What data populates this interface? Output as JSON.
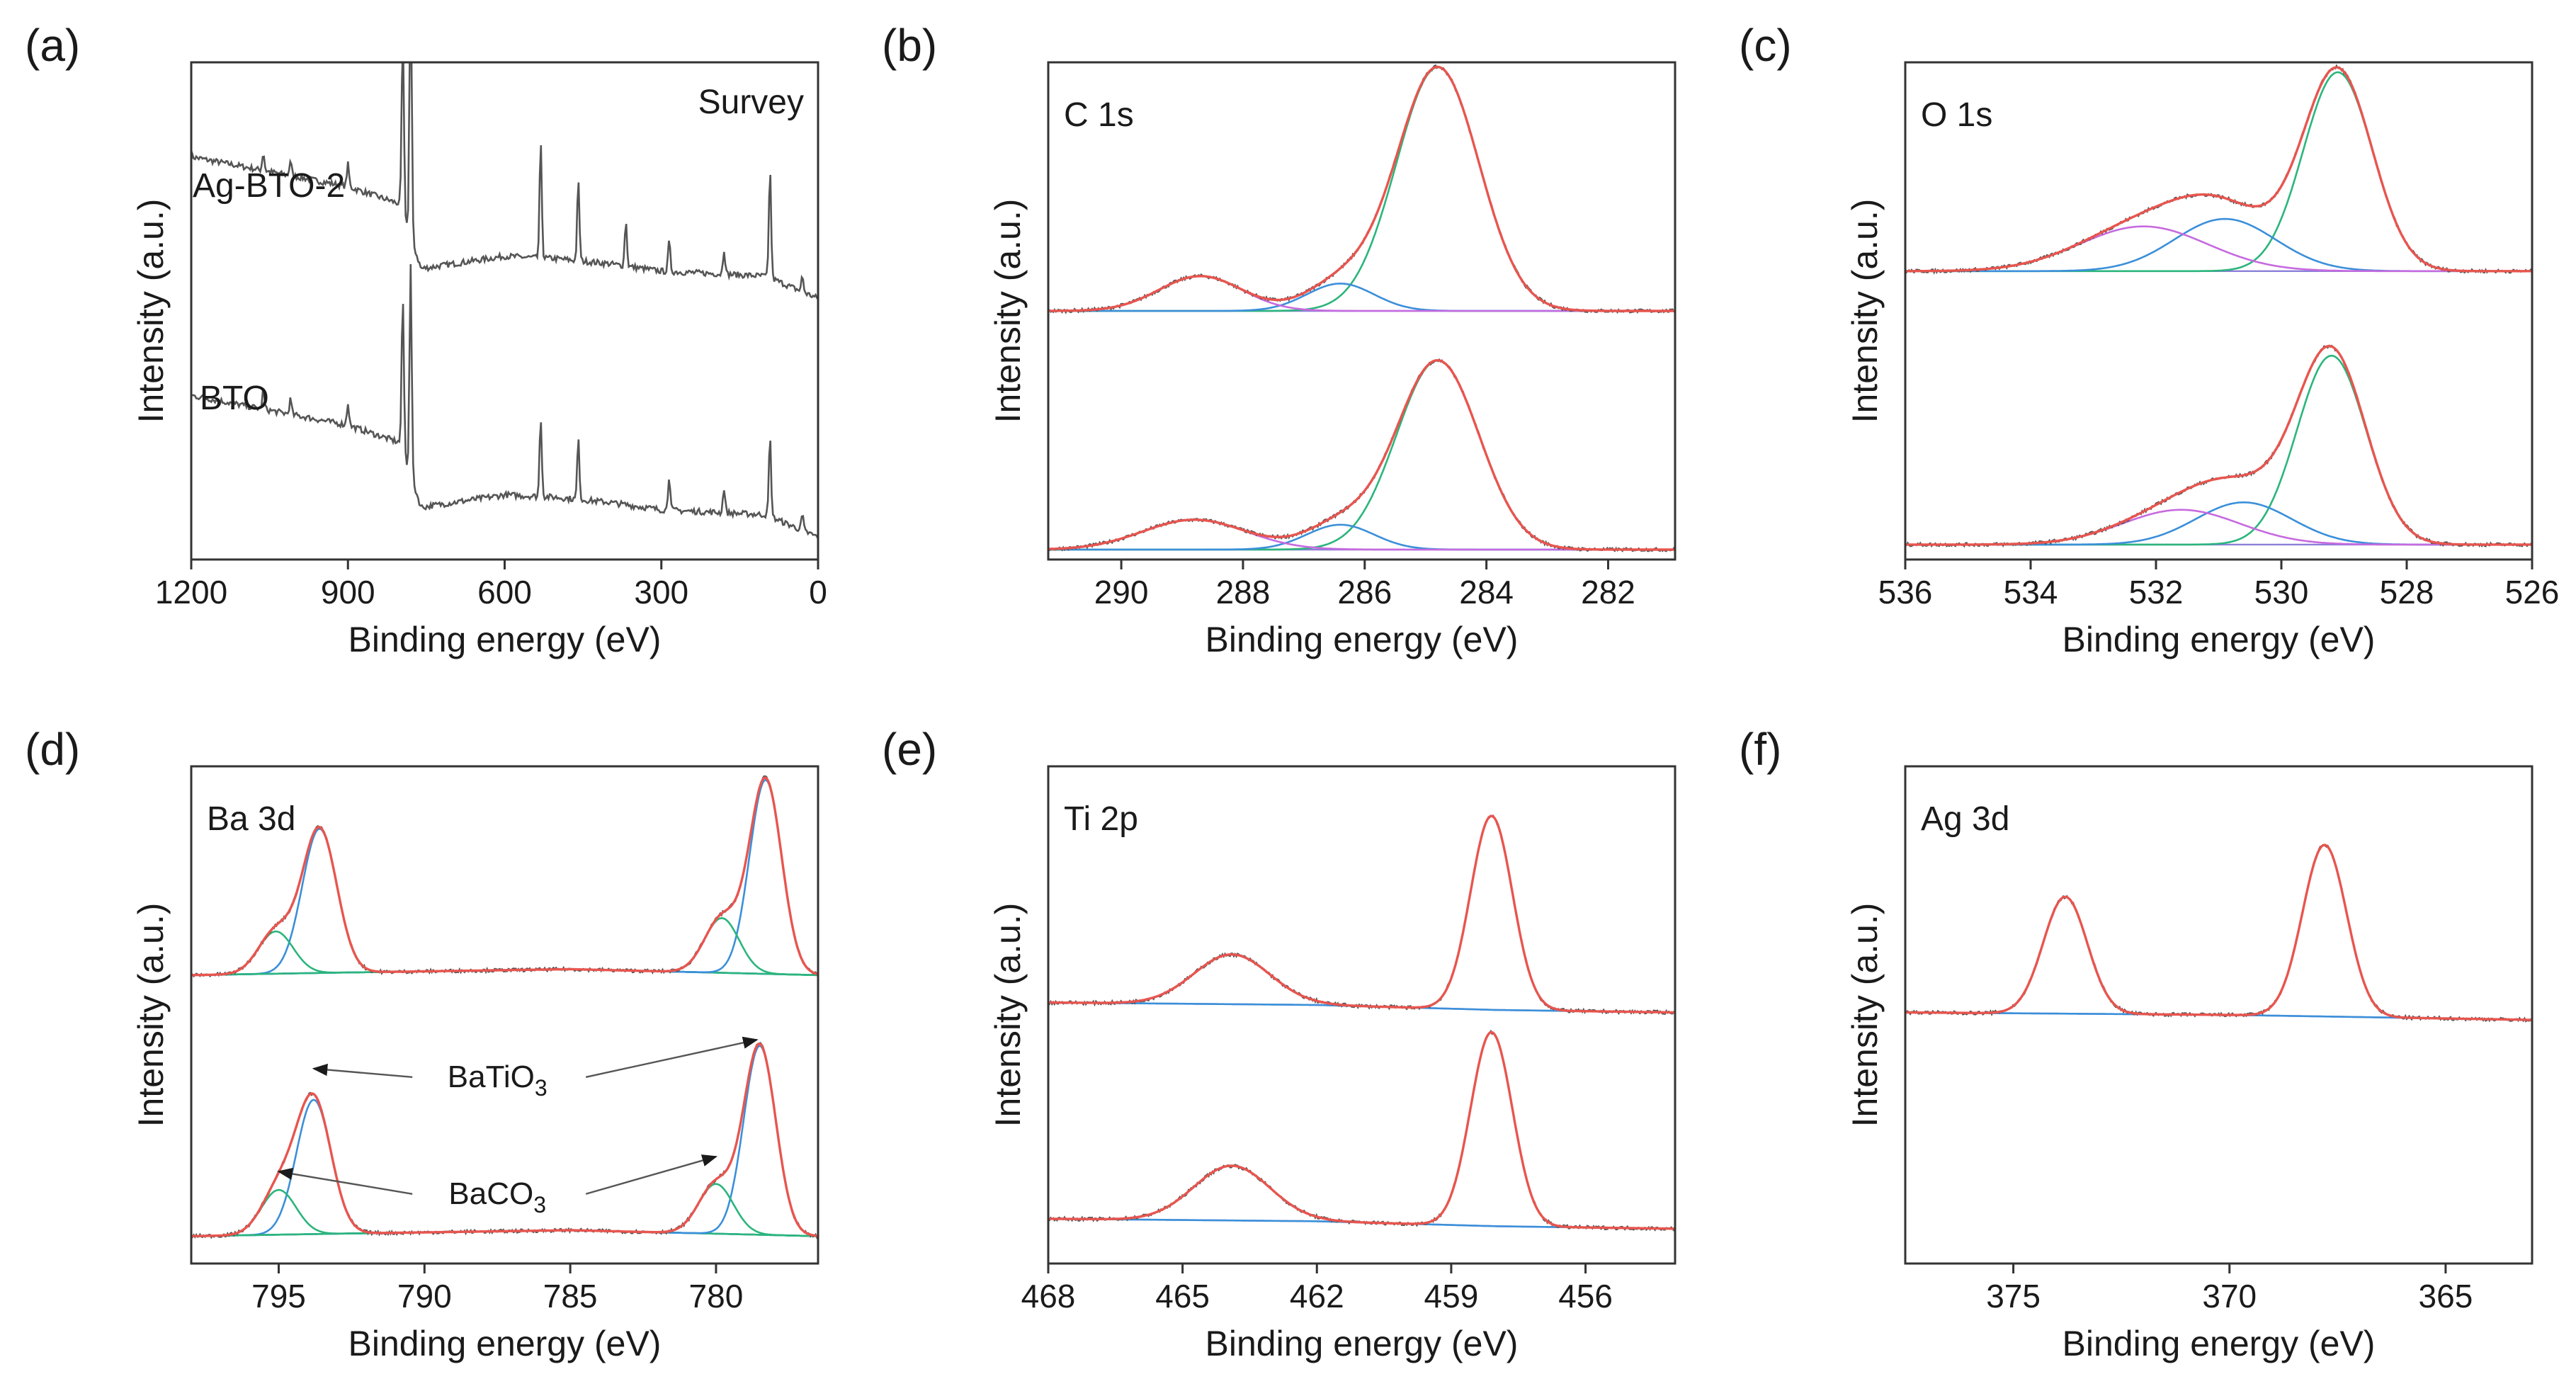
{
  "figure": {
    "colors": {
      "envelope": "#e8554f",
      "raw": "#555555",
      "component_main": "#3b8fd9",
      "component_second": "#2bb57c",
      "component_third": "#c66adf",
      "baseline": "#8a7fd8",
      "survey": "#555555"
    }
  },
  "chart_data": [
    {
      "id": "a",
      "panel_label": "(a)",
      "type": "line",
      "title": "Survey",
      "xlabel": "Binding energy (eV)",
      "ylabel": "Intensity (a.u.)",
      "xlim": [
        1200,
        0
      ],
      "ylim": [
        0,
        10
      ],
      "xticks": [
        1200,
        900,
        600,
        300,
        0
      ],
      "xtick_labels": [
        "1200",
        "900",
        "600",
        "300",
        "0"
      ],
      "series_labels": [
        "Ag-BTO-2",
        "BTO"
      ],
      "series": [
        {
          "name": "Ag-BTO-2",
          "offset": 5.2,
          "background": [
            [
              1200,
              2.9
            ],
            [
              1050,
              2.6
            ],
            [
              900,
              2.3
            ],
            [
              800,
              1.95
            ],
            [
              760,
              0.65
            ],
            [
              600,
              0.9
            ],
            [
              500,
              0.85
            ],
            [
              400,
              0.75
            ],
            [
              300,
              0.6
            ],
            [
              200,
              0.55
            ],
            [
              100,
              0.5
            ],
            [
              0,
              0.05
            ]
          ],
          "peaks": [
            {
              "x": 1062,
              "h": 0.35
            },
            {
              "x": 1010,
              "h": 0.3
            },
            {
              "x": 900,
              "h": 0.45
            },
            {
              "x": 795,
              "h": 3.6
            },
            {
              "x": 780,
              "h": 5.4
            },
            {
              "x": 531,
              "h": 2.3
            },
            {
              "x": 459,
              "h": 1.6
            },
            {
              "x": 368,
              "h": 0.9
            },
            {
              "x": 285,
              "h": 0.6
            },
            {
              "x": 180,
              "h": 0.5
            },
            {
              "x": 92,
              "h": 2.2
            },
            {
              "x": 30,
              "h": 0.3
            }
          ]
        },
        {
          "name": "BTO",
          "offset": 0.4,
          "background": [
            [
              1200,
              2.9
            ],
            [
              1050,
              2.6
            ],
            [
              900,
              2.3
            ],
            [
              800,
              1.95
            ],
            [
              760,
              0.65
            ],
            [
              600,
              0.9
            ],
            [
              500,
              0.85
            ],
            [
              400,
              0.75
            ],
            [
              300,
              0.6
            ],
            [
              200,
              0.55
            ],
            [
              100,
              0.5
            ],
            [
              0,
              0.05
            ]
          ],
          "peaks": [
            {
              "x": 1062,
              "h": 0.35
            },
            {
              "x": 1010,
              "h": 0.3
            },
            {
              "x": 900,
              "h": 0.45
            },
            {
              "x": 795,
              "h": 3.1
            },
            {
              "x": 780,
              "h": 4.2
            },
            {
              "x": 531,
              "h": 1.6
            },
            {
              "x": 459,
              "h": 1.2
            },
            {
              "x": 285,
              "h": 0.7
            },
            {
              "x": 180,
              "h": 0.5
            },
            {
              "x": 92,
              "h": 1.6
            },
            {
              "x": 30,
              "h": 0.3
            }
          ]
        }
      ]
    },
    {
      "id": "b",
      "panel_label": "(b)",
      "type": "line",
      "title": "C 1s",
      "xlabel": "Binding energy (eV)",
      "ylabel": "Intensity (a.u.)",
      "xlim": [
        291.2,
        280.9
      ],
      "ylim": [
        0,
        10
      ],
      "xticks": [
        290,
        288,
        286,
        284,
        282
      ],
      "xtick_labels": [
        "290",
        "288",
        "286",
        "284",
        "282"
      ],
      "stacks": [
        {
          "offset": 5.0,
          "baseline": [
            [
              291.2,
              0.0
            ],
            [
              280.9,
              0.0
            ]
          ],
          "components": [
            {
              "center": 284.8,
              "fwhm": 1.6,
              "height": 4.9,
              "color": "component_second"
            },
            {
              "center": 286.4,
              "fwhm": 1.3,
              "height": 0.55,
              "color": "component_main"
            },
            {
              "center": 288.7,
              "fwhm": 1.6,
              "height": 0.7,
              "color": "component_third"
            }
          ]
        },
        {
          "offset": 0.2,
          "baseline": [
            [
              291.2,
              0.0
            ],
            [
              280.9,
              0.0
            ]
          ],
          "components": [
            {
              "center": 284.8,
              "fwhm": 1.6,
              "height": 3.8,
              "color": "component_second"
            },
            {
              "center": 286.4,
              "fwhm": 1.3,
              "height": 0.5,
              "color": "component_main"
            },
            {
              "center": 288.8,
              "fwhm": 2.0,
              "height": 0.6,
              "color": "component_third"
            }
          ]
        }
      ]
    },
    {
      "id": "c",
      "panel_label": "(c)",
      "type": "line",
      "title": "O 1s",
      "xlabel": "Binding energy (eV)",
      "ylabel": "Intensity (a.u.)",
      "xlim": [
        536,
        526
      ],
      "ylim": [
        0,
        10
      ],
      "xticks": [
        536,
        534,
        532,
        530,
        528,
        526
      ],
      "xtick_labels": [
        "536",
        "534",
        "532",
        "530",
        "528",
        "526"
      ],
      "stacks": [
        {
          "offset": 5.8,
          "baseline": [
            [
              536,
              0.0
            ],
            [
              526,
              0.0
            ]
          ],
          "components": [
            {
              "center": 529.1,
              "fwhm": 1.3,
              "height": 4.0,
              "color": "component_second"
            },
            {
              "center": 530.9,
              "fwhm": 1.9,
              "height": 1.05,
              "color": "component_main"
            },
            {
              "center": 532.2,
              "fwhm": 2.4,
              "height": 0.9,
              "color": "component_third"
            }
          ]
        },
        {
          "offset": 0.3,
          "baseline": [
            [
              536,
              0.0
            ],
            [
              526,
              0.0
            ]
          ],
          "components": [
            {
              "center": 529.2,
              "fwhm": 1.3,
              "height": 3.8,
              "color": "component_second"
            },
            {
              "center": 530.6,
              "fwhm": 1.8,
              "height": 0.85,
              "color": "component_main"
            },
            {
              "center": 531.6,
              "fwhm": 2.2,
              "height": 0.7,
              "color": "component_third"
            }
          ]
        }
      ]
    },
    {
      "id": "d",
      "panel_label": "(d)",
      "type": "line",
      "title": "Ba 3d",
      "xlabel": "Binding energy (eV)",
      "ylabel": "Intensity (a.u.)",
      "xlim": [
        798,
        776.5
      ],
      "ylim": [
        0,
        10
      ],
      "xticks": [
        795,
        790,
        785,
        780
      ],
      "xtick_labels": [
        "795",
        "790",
        "785",
        "780"
      ],
      "annotations": [
        {
          "text": "BaTiO",
          "sub": "3",
          "at": [
            787.5,
            3.55
          ],
          "arrows": [
            [
              793.8,
              3.92
            ],
            [
              778.6,
              4.5
            ]
          ]
        },
        {
          "text": "BaCO",
          "sub": "3",
          "at": [
            787.5,
            1.2
          ],
          "arrows": [
            [
              795.0,
              1.85
            ],
            [
              780.0,
              2.15
            ]
          ]
        }
      ],
      "stacks": [
        {
          "offset": 5.8,
          "baseline": [
            [
              798,
              0.0
            ],
            [
              793,
              0.05
            ],
            [
              785,
              0.12
            ],
            [
              780,
              0.05
            ],
            [
              776.5,
              0.0
            ]
          ],
          "components": [
            {
              "center": 793.6,
              "fwhm": 1.4,
              "height": 2.9,
              "color": "component_main"
            },
            {
              "center": 795.1,
              "fwhm": 1.4,
              "height": 0.85,
              "color": "component_second"
            },
            {
              "center": 778.3,
              "fwhm": 1.3,
              "height": 3.9,
              "color": "component_main"
            },
            {
              "center": 779.8,
              "fwhm": 1.4,
              "height": 1.1,
              "color": "component_second"
            }
          ]
        },
        {
          "offset": 0.55,
          "baseline": [
            [
              798,
              0.0
            ],
            [
              793,
              0.05
            ],
            [
              785,
              0.12
            ],
            [
              780,
              0.05
            ],
            [
              776.5,
              0.0
            ]
          ],
          "components": [
            {
              "center": 793.8,
              "fwhm": 1.4,
              "height": 2.7,
              "color": "component_main"
            },
            {
              "center": 795.0,
              "fwhm": 1.4,
              "height": 0.9,
              "color": "component_second"
            },
            {
              "center": 778.5,
              "fwhm": 1.3,
              "height": 3.8,
              "color": "component_main"
            },
            {
              "center": 780.0,
              "fwhm": 1.4,
              "height": 1.0,
              "color": "component_second"
            }
          ]
        }
      ]
    },
    {
      "id": "e",
      "panel_label": "(e)",
      "type": "line",
      "title": "Ti 2p",
      "xlabel": "Binding energy (eV)",
      "ylabel": "Intensity (a.u.)",
      "xlim": [
        468,
        454
      ],
      "ylim": [
        0,
        10
      ],
      "xticks": [
        468,
        465,
        462,
        459,
        456
      ],
      "xtick_labels": [
        "468",
        "465",
        "462",
        "459",
        "456"
      ],
      "stacks": [
        {
          "offset": 5.2,
          "baseline": [
            [
              468,
              0.05
            ],
            [
              462,
              0.0
            ],
            [
              458,
              -0.1
            ],
            [
              454,
              -0.15
            ]
          ],
          "components": [
            {
              "center": 463.9,
              "fwhm": 2.0,
              "height": 1.0,
              "color": "component_main"
            },
            {
              "center": 458.1,
              "fwhm": 1.1,
              "height": 3.9,
              "color": "component_main"
            }
          ]
        },
        {
          "offset": 0.85,
          "baseline": [
            [
              468,
              0.05
            ],
            [
              462,
              0.0
            ],
            [
              458,
              -0.1
            ],
            [
              454,
              -0.15
            ]
          ],
          "components": [
            {
              "center": 463.9,
              "fwhm": 2.0,
              "height": 1.1,
              "color": "component_main"
            },
            {
              "center": 458.1,
              "fwhm": 1.1,
              "height": 3.9,
              "color": "component_main"
            }
          ]
        }
      ]
    },
    {
      "id": "f",
      "panel_label": "(f)",
      "type": "line",
      "title": "Ag 3d",
      "xlabel": "Binding energy (eV)",
      "ylabel": "Intensity (a.u.)",
      "xlim": [
        377.5,
        363
      ],
      "ylim": [
        0,
        10
      ],
      "xticks": [
        375,
        370,
        365
      ],
      "xtick_labels": [
        "375",
        "370",
        "365"
      ],
      "stacks": [
        {
          "offset": 5.0,
          "baseline": [
            [
              377.5,
              0.05
            ],
            [
              370,
              0.0
            ],
            [
              363,
              -0.1
            ]
          ],
          "components": [
            {
              "center": 373.8,
              "fwhm": 1.2,
              "height": 2.35,
              "color": "component_main"
            },
            {
              "center": 367.8,
              "fwhm": 1.2,
              "height": 3.45,
              "color": "component_main"
            }
          ]
        }
      ]
    }
  ]
}
